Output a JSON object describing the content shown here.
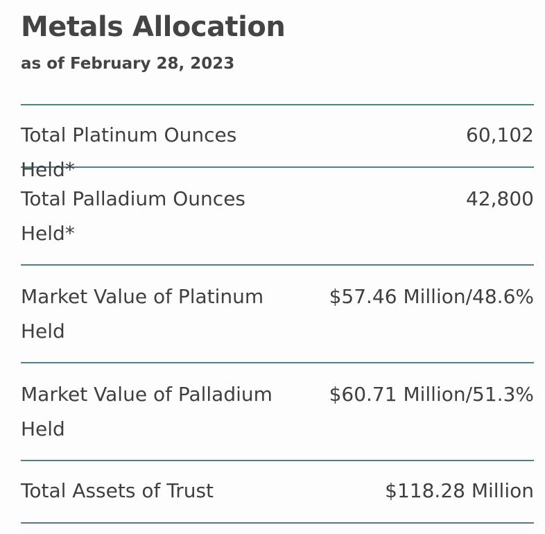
{
  "title": "Metals Allocation",
  "subtitle": "as of February 28, 2023",
  "rows": [
    {
      "label": "Total Platinum Ounces Held*",
      "value": "60,102"
    },
    {
      "label": "Total Palladium Ounces Held*",
      "value": "42,800"
    },
    {
      "label": "Market Value of Platinum Held",
      "value": "$57.46 Million/48.6%"
    },
    {
      "label": "Market Value of Palladium Held",
      "value": "$60.71 Million/51.3%"
    },
    {
      "label": "Total Assets of Trust",
      "value": "$118.28 Million"
    }
  ],
  "colors": {
    "divider": "#4f7e88",
    "text": "#3f3f3f",
    "heading": "#444444"
  }
}
